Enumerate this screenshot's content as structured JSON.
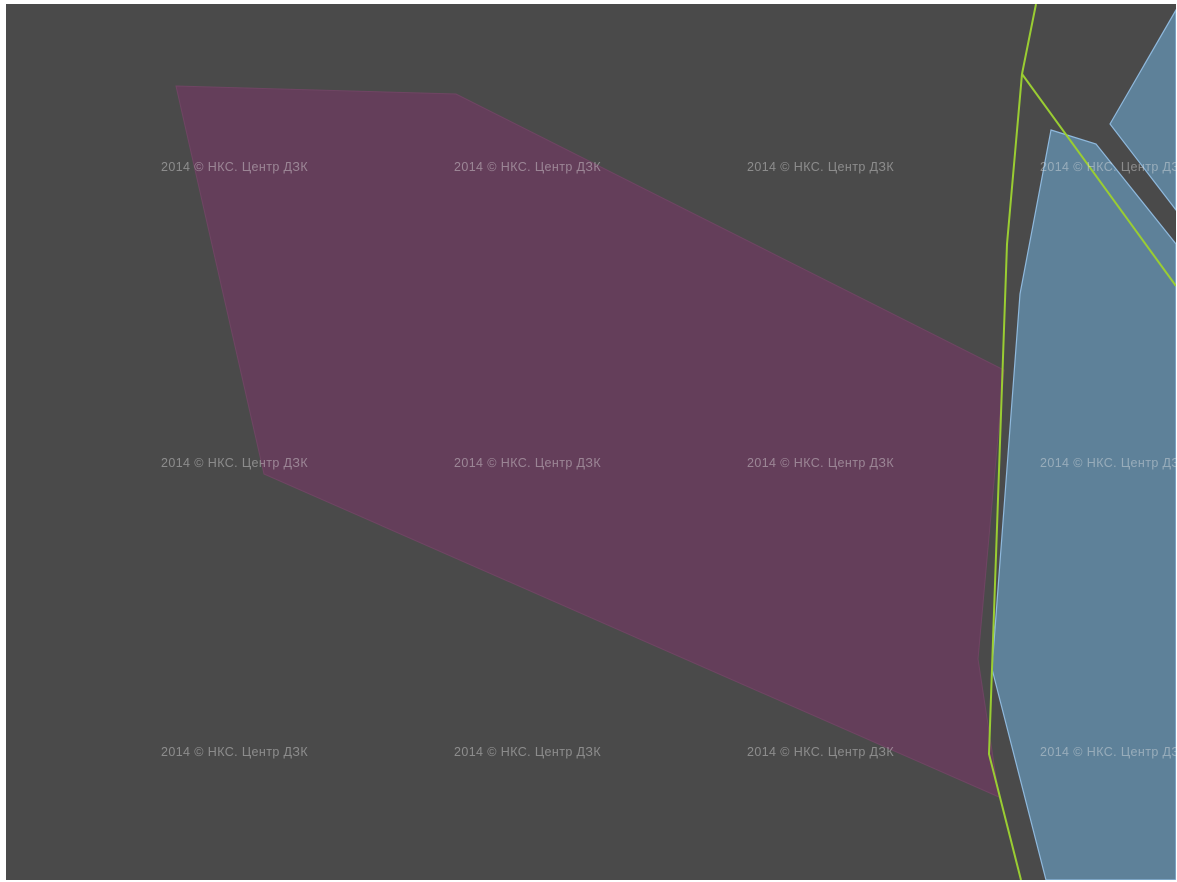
{
  "map": {
    "background_color": "#4a4a4a",
    "watermark_text": "2014 © НКС. Центр ДЗК",
    "watermark_color": "rgba(230,230,230,0.42)"
  },
  "layers": {
    "region_a": {
      "fill": "#643e5a",
      "stroke": "#6f4563"
    },
    "region_b": {
      "fill": "#5e8199",
      "stroke": "#8fb9dd"
    },
    "boundary_line": {
      "stroke": "#9acd32"
    }
  }
}
